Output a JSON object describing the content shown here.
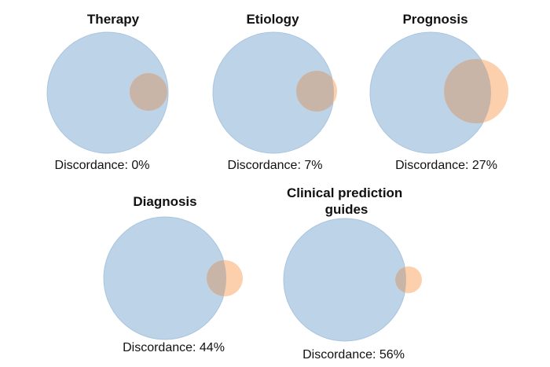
{
  "colors": {
    "big_circle_fill": "#bcd3e8",
    "big_circle_stroke": "#aac5df",
    "small_circle_fill": "#fcd0ac",
    "overlap_fill": "#c9b5a8",
    "text": "#111111"
  },
  "panels": [
    {
      "title_lines": [
        "Therapy"
      ],
      "label": "Discordance: 0%"
    },
    {
      "title_lines": [
        "Etiology"
      ],
      "label": "Discordance: 7%"
    },
    {
      "title_lines": [
        "Prognosis"
      ],
      "label": "Discordance: 27%"
    },
    {
      "title_lines": [
        "Diagnosis"
      ],
      "label": "Discordance: 44%"
    },
    {
      "title_lines": [
        "Clinical prediction",
        "guides"
      ],
      "label": "Discordance: 56%"
    }
  ]
}
